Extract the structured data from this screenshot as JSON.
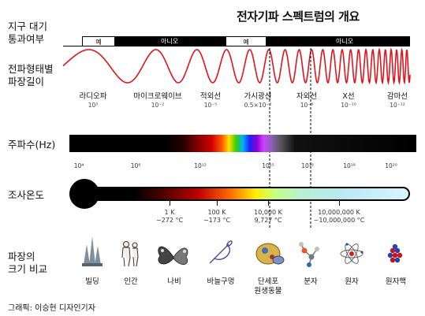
{
  "title": "전자기파 스펙트럼의 개요",
  "rows": {
    "atmosphere": [
      "지구 대기",
      "통과여부"
    ],
    "wavelength": [
      "전파형태별",
      "파장길이"
    ],
    "frequency": "주파수(Hz)",
    "temperature": "조사온도",
    "scale": [
      "파장의",
      "크기 비교"
    ]
  },
  "atmosphere_segments": [
    {
      "label": "예",
      "state": "open"
    },
    {
      "label": "아니오",
      "state": "closed"
    },
    {
      "label": "예",
      "state": "open"
    },
    {
      "label": "아니오",
      "state": "closed"
    }
  ],
  "bands": [
    {
      "name": "라디오파",
      "value": "10³"
    },
    {
      "name": "마이크로웨이브",
      "value": "10⁻²"
    },
    {
      "name": "적외선",
      "value": "10⁻⁵"
    },
    {
      "name": "가시광선",
      "value": "0.5×10⁻⁶"
    },
    {
      "name": "자외선",
      "value": "10⁻⁸"
    },
    {
      "name": "X선",
      "value": "10⁻¹⁰"
    },
    {
      "name": "감마선",
      "value": "10⁻¹²"
    }
  ],
  "frequency_ticks": [
    "10⁴",
    "10⁸",
    "10¹²",
    "10¹⁵",
    "10¹⁶",
    "10¹⁸",
    "10²⁰"
  ],
  "temperature_ticks": [
    {
      "k": "1 K",
      "c": "−272 °C"
    },
    {
      "k": "100 K",
      "c": "−173 °C"
    },
    {
      "k": "10,000 K",
      "c": "9,727 °C"
    },
    {
      "k": "10,000,000 K",
      "c": "~10,000,000 °C"
    }
  ],
  "scale_items": [
    {
      "label": "빌딩",
      "icon": "building-icon"
    },
    {
      "label": "인간",
      "icon": "human-icon"
    },
    {
      "label": "나비",
      "icon": "butterfly-icon"
    },
    {
      "label": "바늘구멍",
      "icon": "needle-icon"
    },
    {
      "label": "단세포",
      "label2": "원생동물",
      "icon": "protozoa-icon"
    },
    {
      "label": "분자",
      "icon": "molecule-icon"
    },
    {
      "label": "원자",
      "icon": "atom-icon"
    },
    {
      "label": "원자핵",
      "icon": "nucleus-icon"
    }
  ],
  "credit": "그래픽: 이승현 디자인기자",
  "colors": {
    "wave": "#e0141c",
    "ink": "#000000"
  }
}
